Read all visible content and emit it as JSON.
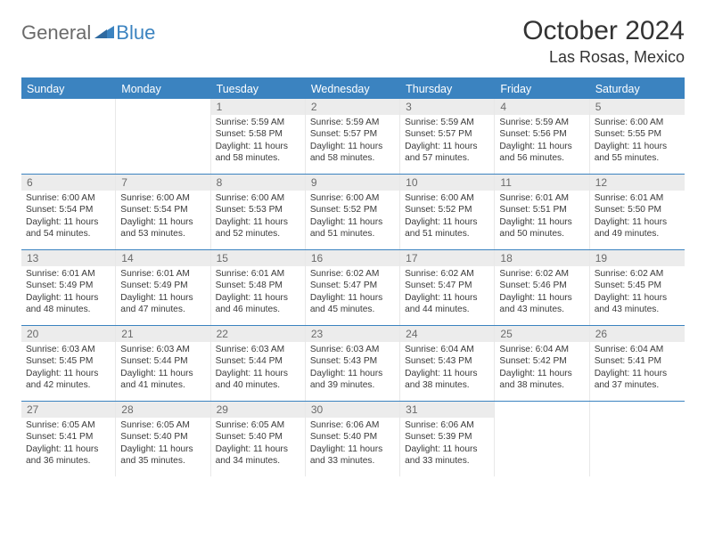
{
  "logo": {
    "text_general": "General",
    "text_blue": "Blue"
  },
  "title": {
    "month": "October 2024",
    "location": "Las Rosas, Mexico"
  },
  "colors": {
    "brand_blue": "#3b83c0",
    "header_bg": "#3b83c0",
    "daynum_bg": "#ececec",
    "text_gray": "#6b6b6b",
    "cell_border": "#e8e8e8"
  },
  "weekdays": [
    "Sunday",
    "Monday",
    "Tuesday",
    "Wednesday",
    "Thursday",
    "Friday",
    "Saturday"
  ],
  "weeks": [
    [
      {
        "num": "",
        "empty": true
      },
      {
        "num": "",
        "empty": true
      },
      {
        "num": "1",
        "sunrise": "Sunrise: 5:59 AM",
        "sunset": "Sunset: 5:58 PM",
        "daylight": "Daylight: 11 hours and 58 minutes."
      },
      {
        "num": "2",
        "sunrise": "Sunrise: 5:59 AM",
        "sunset": "Sunset: 5:57 PM",
        "daylight": "Daylight: 11 hours and 58 minutes."
      },
      {
        "num": "3",
        "sunrise": "Sunrise: 5:59 AM",
        "sunset": "Sunset: 5:57 PM",
        "daylight": "Daylight: 11 hours and 57 minutes."
      },
      {
        "num": "4",
        "sunrise": "Sunrise: 5:59 AM",
        "sunset": "Sunset: 5:56 PM",
        "daylight": "Daylight: 11 hours and 56 minutes."
      },
      {
        "num": "5",
        "sunrise": "Sunrise: 6:00 AM",
        "sunset": "Sunset: 5:55 PM",
        "daylight": "Daylight: 11 hours and 55 minutes."
      }
    ],
    [
      {
        "num": "6",
        "sunrise": "Sunrise: 6:00 AM",
        "sunset": "Sunset: 5:54 PM",
        "daylight": "Daylight: 11 hours and 54 minutes."
      },
      {
        "num": "7",
        "sunrise": "Sunrise: 6:00 AM",
        "sunset": "Sunset: 5:54 PM",
        "daylight": "Daylight: 11 hours and 53 minutes."
      },
      {
        "num": "8",
        "sunrise": "Sunrise: 6:00 AM",
        "sunset": "Sunset: 5:53 PM",
        "daylight": "Daylight: 11 hours and 52 minutes."
      },
      {
        "num": "9",
        "sunrise": "Sunrise: 6:00 AM",
        "sunset": "Sunset: 5:52 PM",
        "daylight": "Daylight: 11 hours and 51 minutes."
      },
      {
        "num": "10",
        "sunrise": "Sunrise: 6:00 AM",
        "sunset": "Sunset: 5:52 PM",
        "daylight": "Daylight: 11 hours and 51 minutes."
      },
      {
        "num": "11",
        "sunrise": "Sunrise: 6:01 AM",
        "sunset": "Sunset: 5:51 PM",
        "daylight": "Daylight: 11 hours and 50 minutes."
      },
      {
        "num": "12",
        "sunrise": "Sunrise: 6:01 AM",
        "sunset": "Sunset: 5:50 PM",
        "daylight": "Daylight: 11 hours and 49 minutes."
      }
    ],
    [
      {
        "num": "13",
        "sunrise": "Sunrise: 6:01 AM",
        "sunset": "Sunset: 5:49 PM",
        "daylight": "Daylight: 11 hours and 48 minutes."
      },
      {
        "num": "14",
        "sunrise": "Sunrise: 6:01 AM",
        "sunset": "Sunset: 5:49 PM",
        "daylight": "Daylight: 11 hours and 47 minutes."
      },
      {
        "num": "15",
        "sunrise": "Sunrise: 6:01 AM",
        "sunset": "Sunset: 5:48 PM",
        "daylight": "Daylight: 11 hours and 46 minutes."
      },
      {
        "num": "16",
        "sunrise": "Sunrise: 6:02 AM",
        "sunset": "Sunset: 5:47 PM",
        "daylight": "Daylight: 11 hours and 45 minutes."
      },
      {
        "num": "17",
        "sunrise": "Sunrise: 6:02 AM",
        "sunset": "Sunset: 5:47 PM",
        "daylight": "Daylight: 11 hours and 44 minutes."
      },
      {
        "num": "18",
        "sunrise": "Sunrise: 6:02 AM",
        "sunset": "Sunset: 5:46 PM",
        "daylight": "Daylight: 11 hours and 43 minutes."
      },
      {
        "num": "19",
        "sunrise": "Sunrise: 6:02 AM",
        "sunset": "Sunset: 5:45 PM",
        "daylight": "Daylight: 11 hours and 43 minutes."
      }
    ],
    [
      {
        "num": "20",
        "sunrise": "Sunrise: 6:03 AM",
        "sunset": "Sunset: 5:45 PM",
        "daylight": "Daylight: 11 hours and 42 minutes."
      },
      {
        "num": "21",
        "sunrise": "Sunrise: 6:03 AM",
        "sunset": "Sunset: 5:44 PM",
        "daylight": "Daylight: 11 hours and 41 minutes."
      },
      {
        "num": "22",
        "sunrise": "Sunrise: 6:03 AM",
        "sunset": "Sunset: 5:44 PM",
        "daylight": "Daylight: 11 hours and 40 minutes."
      },
      {
        "num": "23",
        "sunrise": "Sunrise: 6:03 AM",
        "sunset": "Sunset: 5:43 PM",
        "daylight": "Daylight: 11 hours and 39 minutes."
      },
      {
        "num": "24",
        "sunrise": "Sunrise: 6:04 AM",
        "sunset": "Sunset: 5:43 PM",
        "daylight": "Daylight: 11 hours and 38 minutes."
      },
      {
        "num": "25",
        "sunrise": "Sunrise: 6:04 AM",
        "sunset": "Sunset: 5:42 PM",
        "daylight": "Daylight: 11 hours and 38 minutes."
      },
      {
        "num": "26",
        "sunrise": "Sunrise: 6:04 AM",
        "sunset": "Sunset: 5:41 PM",
        "daylight": "Daylight: 11 hours and 37 minutes."
      }
    ],
    [
      {
        "num": "27",
        "sunrise": "Sunrise: 6:05 AM",
        "sunset": "Sunset: 5:41 PM",
        "daylight": "Daylight: 11 hours and 36 minutes."
      },
      {
        "num": "28",
        "sunrise": "Sunrise: 6:05 AM",
        "sunset": "Sunset: 5:40 PM",
        "daylight": "Daylight: 11 hours and 35 minutes."
      },
      {
        "num": "29",
        "sunrise": "Sunrise: 6:05 AM",
        "sunset": "Sunset: 5:40 PM",
        "daylight": "Daylight: 11 hours and 34 minutes."
      },
      {
        "num": "30",
        "sunrise": "Sunrise: 6:06 AM",
        "sunset": "Sunset: 5:40 PM",
        "daylight": "Daylight: 11 hours and 33 minutes."
      },
      {
        "num": "31",
        "sunrise": "Sunrise: 6:06 AM",
        "sunset": "Sunset: 5:39 PM",
        "daylight": "Daylight: 11 hours and 33 minutes."
      },
      {
        "num": "",
        "empty": true
      },
      {
        "num": "",
        "empty": true
      }
    ]
  ]
}
